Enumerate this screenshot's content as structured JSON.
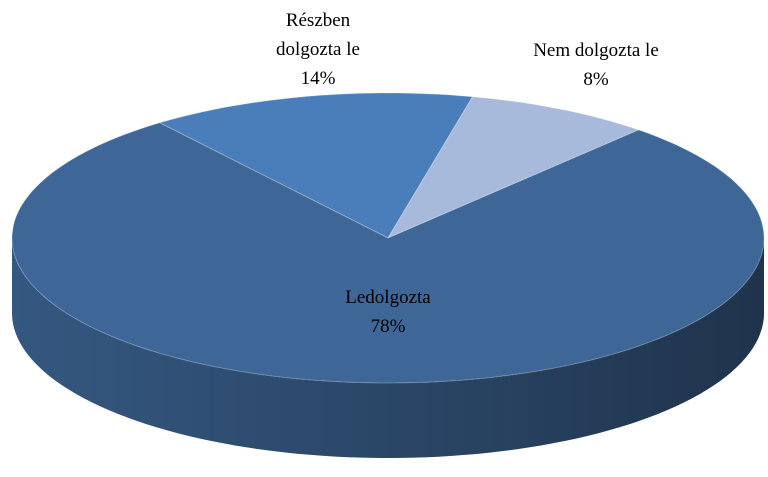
{
  "chart_data": {
    "type": "pie",
    "view": "3d",
    "categories": [
      "Részben dolgozta le",
      "Nem dolgozta le",
      "Ledolgozta"
    ],
    "values": [
      14,
      8,
      78
    ],
    "value_labels": [
      "14%",
      "8%",
      "78%"
    ],
    "colors": [
      "#4a7ebb",
      "#a8badb",
      "#3e6797"
    ]
  }
}
